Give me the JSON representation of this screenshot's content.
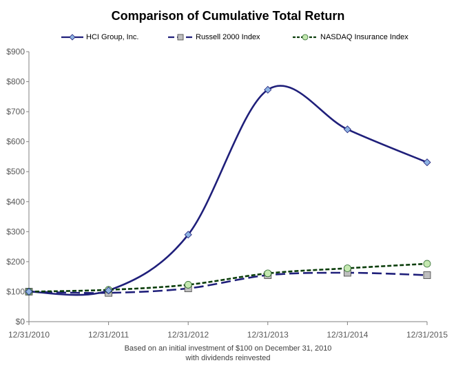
{
  "chart_data": {
    "type": "line",
    "title": "Comparison of Cumulative Total Return",
    "categories": [
      "12/31/2010",
      "12/31/2011",
      "12/31/2012",
      "12/31/2013",
      "12/31/2014",
      "12/31/2015"
    ],
    "series": [
      {
        "name": "HCI Group, Inc.",
        "values": [
          100,
          104,
          290,
          773,
          641,
          531
        ],
        "color": "#1F1F7A",
        "style": "solid",
        "marker": "diamond",
        "marker_color": "#8DB3E2"
      },
      {
        "name": "Russell 2000 Index",
        "values": [
          100,
          96,
          111,
          155,
          163,
          155
        ],
        "color": "#1F1F7A",
        "style": "dashed",
        "marker": "square",
        "marker_color": "#BFBFBF"
      },
      {
        "name": "NASDAQ Insurance Index",
        "values": [
          100,
          106,
          123,
          161,
          178,
          193
        ],
        "color": "#0A3D0A",
        "style": "dashed",
        "marker": "circle",
        "marker_color": "#C4E8B0"
      }
    ],
    "y_ticks": [
      "$0",
      "$100",
      "$200",
      "$300",
      "$400",
      "$500",
      "$600",
      "$700",
      "$800",
      "$900"
    ],
    "ylim": [
      0,
      900
    ],
    "xlabel": "",
    "ylabel": "",
    "grid": false,
    "legend_position": "top"
  },
  "footnote": {
    "line1": "Based on an initial investment of $100 on December 31, 2010",
    "line2": "with dividends reinvested"
  }
}
